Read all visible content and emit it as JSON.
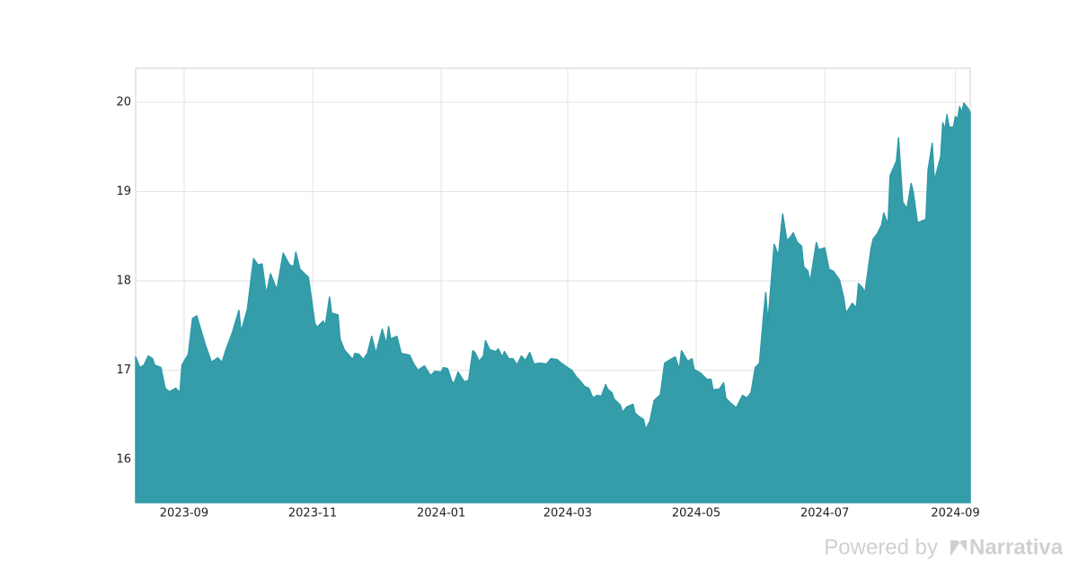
{
  "chart_data": {
    "type": "area",
    "x": [
      "2023-08-09",
      "2023-08-11",
      "2023-08-13",
      "2023-08-15",
      "2023-08-17",
      "2023-08-18",
      "2023-08-21",
      "2023-08-23",
      "2023-08-25",
      "2023-08-28",
      "2023-08-30",
      "2023-08-31",
      "2023-09-03",
      "2023-09-05",
      "2023-09-07",
      "2023-09-11",
      "2023-09-14",
      "2023-09-17",
      "2023-09-19",
      "2023-09-21",
      "2023-09-24",
      "2023-09-27",
      "2023-09-28",
      "2023-10-01",
      "2023-10-03",
      "2023-10-04",
      "2023-10-06",
      "2023-10-08",
      "2023-10-10",
      "2023-10-12",
      "2023-10-15",
      "2023-10-18",
      "2023-10-21",
      "2023-10-23",
      "2023-10-24",
      "2023-10-26",
      "2023-10-30",
      "2023-11-02",
      "2023-11-03",
      "2023-11-06",
      "2023-11-07",
      "2023-11-09",
      "2023-11-10",
      "2023-11-13",
      "2023-11-14",
      "2023-11-16",
      "2023-11-20",
      "2023-11-21",
      "2023-11-23",
      "2023-11-25",
      "2023-11-27",
      "2023-11-29",
      "2023-12-01",
      "2023-12-04",
      "2023-12-06",
      "2023-12-07",
      "2023-12-08",
      "2023-12-11",
      "2023-12-13",
      "2023-12-17",
      "2023-12-19",
      "2023-12-21",
      "2023-12-24",
      "2023-12-27",
      "2023-12-29",
      "2024-01-01",
      "2024-01-02",
      "2024-01-04",
      "2024-01-06",
      "2024-01-07",
      "2024-01-09",
      "2024-01-12",
      "2024-01-14",
      "2024-01-16",
      "2024-01-17",
      "2024-01-19",
      "2024-01-21",
      "2024-01-22",
      "2024-01-24",
      "2024-01-27",
      "2024-01-28",
      "2024-01-30",
      "2024-01-31",
      "2024-02-02",
      "2024-02-04",
      "2024-02-06",
      "2024-02-08",
      "2024-02-10",
      "2024-02-12",
      "2024-02-14",
      "2024-02-17",
      "2024-02-20",
      "2024-02-22",
      "2024-02-25",
      "2024-02-27",
      "2024-03-01",
      "2024-03-03",
      "2024-03-05",
      "2024-03-07",
      "2024-03-09",
      "2024-03-11",
      "2024-03-13",
      "2024-03-15",
      "2024-03-17",
      "2024-03-19",
      "2024-03-20",
      "2024-03-22",
      "2024-03-23",
      "2024-03-26",
      "2024-03-27",
      "2024-03-29",
      "2024-04-01",
      "2024-04-02",
      "2024-04-04",
      "2024-04-06",
      "2024-04-07",
      "2024-04-09",
      "2024-04-11",
      "2024-04-14",
      "2024-04-16",
      "2024-04-18",
      "2024-04-21",
      "2024-04-23",
      "2024-04-24",
      "2024-04-27",
      "2024-04-29",
      "2024-04-30",
      "2024-05-03",
      "2024-05-06",
      "2024-05-08",
      "2024-05-09",
      "2024-05-12",
      "2024-05-14",
      "2024-05-15",
      "2024-05-17",
      "2024-05-20",
      "2024-05-23",
      "2024-05-25",
      "2024-05-27",
      "2024-05-29",
      "2024-05-31",
      "2024-06-02",
      "2024-06-03",
      "2024-06-04",
      "2024-06-07",
      "2024-06-09",
      "2024-06-11",
      "2024-06-13",
      "2024-06-15",
      "2024-06-16",
      "2024-06-18",
      "2024-06-20",
      "2024-06-21",
      "2024-06-23",
      "2024-06-24",
      "2024-06-27",
      "2024-06-28",
      "2024-07-01",
      "2024-07-03",
      "2024-07-05",
      "2024-07-08",
      "2024-07-10",
      "2024-07-11",
      "2024-07-13",
      "2024-07-14",
      "2024-07-16",
      "2024-07-17",
      "2024-07-19",
      "2024-07-20",
      "2024-07-23",
      "2024-07-24",
      "2024-07-26",
      "2024-07-28",
      "2024-07-29",
      "2024-07-31",
      "2024-08-01",
      "2024-08-04",
      "2024-08-05",
      "2024-08-07",
      "2024-08-09",
      "2024-08-11",
      "2024-08-12",
      "2024-08-14",
      "2024-08-18",
      "2024-08-19",
      "2024-08-21",
      "2024-08-22",
      "2024-08-25",
      "2024-08-26",
      "2024-08-27",
      "2024-08-28",
      "2024-08-29",
      "2024-08-31",
      "2024-09-01",
      "2024-09-02",
      "2024-09-03",
      "2024-09-04",
      "2024-09-05",
      "2024-09-07",
      "2024-09-08"
    ],
    "series": [
      {
        "color": "#2e9aa7",
        "values": [
          17.15,
          17.03,
          17.06,
          17.16,
          17.13,
          17.06,
          17.03,
          16.8,
          16.76,
          16.8,
          16.75,
          17.06,
          17.18,
          17.58,
          17.61,
          17.29,
          17.09,
          17.14,
          17.09,
          17.24,
          17.43,
          17.67,
          17.43,
          17.68,
          18.07,
          18.25,
          18.18,
          18.19,
          17.85,
          18.08,
          17.9,
          18.31,
          18.18,
          18.16,
          18.32,
          18.13,
          18.04,
          17.53,
          17.48,
          17.55,
          17.5,
          17.82,
          17.64,
          17.62,
          17.35,
          17.23,
          17.12,
          17.19,
          17.18,
          17.12,
          17.19,
          17.38,
          17.19,
          17.46,
          17.29,
          17.49,
          17.35,
          17.38,
          17.19,
          17.17,
          17.07,
          17.0,
          17.05,
          16.94,
          16.99,
          16.98,
          17.03,
          17.02,
          16.88,
          16.85,
          16.98,
          16.87,
          16.89,
          17.22,
          17.2,
          17.1,
          17.16,
          17.33,
          17.23,
          17.21,
          17.24,
          17.15,
          17.21,
          17.13,
          17.13,
          17.06,
          17.16,
          17.11,
          17.2,
          17.07,
          17.08,
          17.07,
          17.13,
          17.12,
          17.08,
          17.03,
          17.0,
          16.93,
          16.88,
          16.82,
          16.8,
          16.69,
          16.72,
          16.71,
          16.84,
          16.79,
          16.75,
          16.68,
          16.61,
          16.53,
          16.59,
          16.62,
          16.52,
          16.48,
          16.45,
          16.34,
          16.43,
          16.66,
          16.73,
          17.08,
          17.11,
          17.15,
          17.01,
          17.22,
          17.1,
          17.13,
          17.01,
          16.97,
          16.9,
          16.9,
          16.78,
          16.79,
          16.86,
          16.69,
          16.64,
          16.58,
          16.72,
          16.69,
          16.75,
          17.03,
          17.08,
          17.63,
          17.87,
          17.53,
          18.41,
          18.28,
          18.75,
          18.45,
          18.5,
          18.54,
          18.43,
          18.39,
          18.16,
          18.11,
          17.98,
          18.43,
          18.35,
          18.37,
          18.13,
          18.11,
          18.01,
          17.81,
          17.64,
          17.71,
          17.75,
          17.7,
          17.97,
          17.92,
          17.86,
          18.37,
          18.47,
          18.53,
          18.63,
          18.76,
          18.63,
          19.18,
          19.34,
          19.6,
          18.88,
          18.81,
          19.09,
          18.99,
          18.65,
          18.69,
          19.24,
          19.54,
          19.12,
          19.39,
          19.77,
          19.69,
          19.86,
          19.72,
          19.72,
          19.84,
          19.81,
          19.95,
          19.88,
          19.99,
          19.93,
          19.88
        ]
      }
    ],
    "xlim": [
      "2023-08-09",
      "2024-09-08"
    ],
    "xticks": [
      "2023-09",
      "2023-11",
      "2024-01",
      "2024-03",
      "2024-05",
      "2024-07",
      "2024-09"
    ],
    "ylim": [
      15.52,
      20.38
    ],
    "yticks": [
      16,
      17,
      18,
      19,
      20
    ],
    "grid": true
  },
  "footer": {
    "powered_by": "Powered by",
    "brand": "Narrativa"
  }
}
